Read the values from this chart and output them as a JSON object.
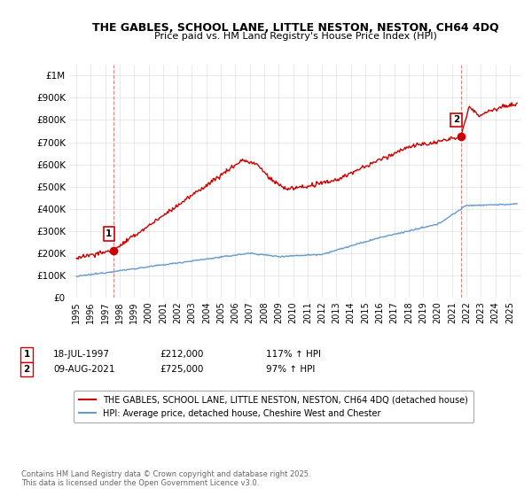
{
  "title_line1": "THE GABLES, SCHOOL LANE, LITTLE NESTON, NESTON, CH64 4DQ",
  "title_line2": "Price paid vs. HM Land Registry's House Price Index (HPI)",
  "yticks": [
    0,
    100000,
    200000,
    300000,
    400000,
    500000,
    600000,
    700000,
    800000,
    900000,
    1000000
  ],
  "ytick_labels": [
    "£0",
    "£100K",
    "£200K",
    "£300K",
    "£400K",
    "£500K",
    "£600K",
    "£700K",
    "£800K",
    "£900K",
    "£1M"
  ],
  "ylim": [
    0,
    1050000
  ],
  "xlim_start": 1994.5,
  "xlim_end": 2025.8,
  "xticks": [
    1995,
    1996,
    1997,
    1998,
    1999,
    2000,
    2001,
    2002,
    2003,
    2004,
    2005,
    2006,
    2007,
    2008,
    2009,
    2010,
    2011,
    2012,
    2013,
    2014,
    2015,
    2016,
    2017,
    2018,
    2019,
    2020,
    2021,
    2022,
    2023,
    2024,
    2025
  ],
  "red_color": "#cc0000",
  "blue_color": "#6699cc",
  "point1_x": 1997.55,
  "point1_y": 212000,
  "point2_x": 2021.6,
  "point2_y": 725000,
  "vline1_x": 1997.55,
  "vline2_x": 2021.6,
  "legend_line1": "THE GABLES, SCHOOL LANE, LITTLE NESTON, NESTON, CH64 4DQ (detached house)",
  "legend_line2": "HPI: Average price, detached house, Cheshire West and Chester",
  "annotation1_date": "18-JUL-1997",
  "annotation1_price": "£212,000",
  "annotation1_hpi": "117% ↑ HPI",
  "annotation2_date": "09-AUG-2021",
  "annotation2_price": "£725,000",
  "annotation2_hpi": "97% ↑ HPI",
  "footnote": "Contains HM Land Registry data © Crown copyright and database right 2025.\nThis data is licensed under the Open Government Licence v3.0.",
  "background_color": "#ffffff",
  "grid_color": "#e0e0e0"
}
